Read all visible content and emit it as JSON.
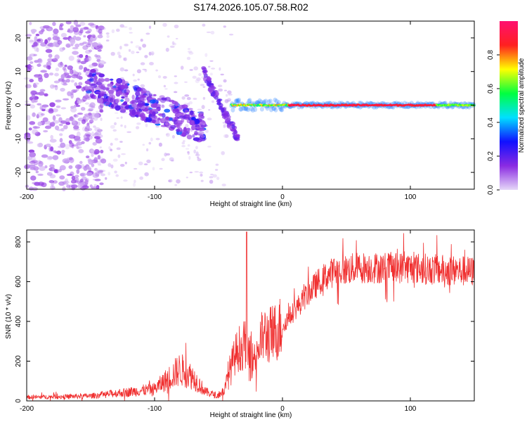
{
  "title": "S174.2026.105.07.58.R02",
  "chart_data": [
    {
      "type": "heatmap",
      "xlabel": "Height of straight line (km)",
      "ylabel": "Frequency (Hz)",
      "xlim": [
        -200,
        150
      ],
      "ylim": [
        -25,
        25
      ],
      "xticks": [
        -200,
        -100,
        0,
        100
      ],
      "yticks": [
        -20,
        -10,
        0,
        10,
        20
      ],
      "colorbar": {
        "label": "Normalized spectral amplitude",
        "range": [
          0,
          1
        ],
        "ticks": [
          "0.0",
          "0.2",
          "0.4",
          "0.6",
          "0.8"
        ],
        "stops": [
          "#e6d8f8",
          "#8a2be2",
          "#1010ff",
          "#00e0ff",
          "#00ff40",
          "#ffff00",
          "#ff2020",
          "#ff1070"
        ]
      },
      "features": {
        "carrier_line": {
          "x_start": -40,
          "x_end": 150,
          "frequency_hz": 0,
          "amplitude": 0.95
        },
        "descending_band": {
          "x_start": -155,
          "x_end": -60,
          "freq_start_hz": 7,
          "freq_end_hz": -7
        },
        "secondary_band": {
          "x_start": -62,
          "x_end": -35,
          "freq_start_hz": 10,
          "freq_end_hz": -10
        },
        "noise_region": {
          "x_start": -200,
          "x_end": -150,
          "freq_range_hz": [
            -25,
            25
          ]
        }
      }
    },
    {
      "type": "line",
      "xlabel": "Height of straight line (km)",
      "ylabel": "SNR (10 * v/v)",
      "xlim": [
        -200,
        150
      ],
      "ylim": [
        0,
        860
      ],
      "xticks": [
        -200,
        -100,
        0,
        100
      ],
      "yticks": [
        0,
        200,
        400,
        600,
        800
      ],
      "series": [
        {
          "name": "SNR",
          "color": "#f03030",
          "envelope_x": [
            -200,
            -150,
            -120,
            -100,
            -90,
            -80,
            -70,
            -60,
            -50,
            -45,
            -40,
            -35,
            -30,
            -28,
            -25,
            -20,
            -15,
            -10,
            -5,
            0,
            10,
            20,
            30,
            40,
            60,
            80,
            100,
            120,
            150
          ],
          "envelope_y": [
            18,
            25,
            45,
            60,
            110,
            160,
            120,
            45,
            25,
            60,
            180,
            260,
            280,
            300,
            180,
            260,
            330,
            330,
            350,
            380,
            460,
            540,
            610,
            650,
            670,
            670,
            670,
            660,
            650
          ]
        }
      ],
      "peak": {
        "x": -28,
        "y": 850
      }
    }
  ]
}
